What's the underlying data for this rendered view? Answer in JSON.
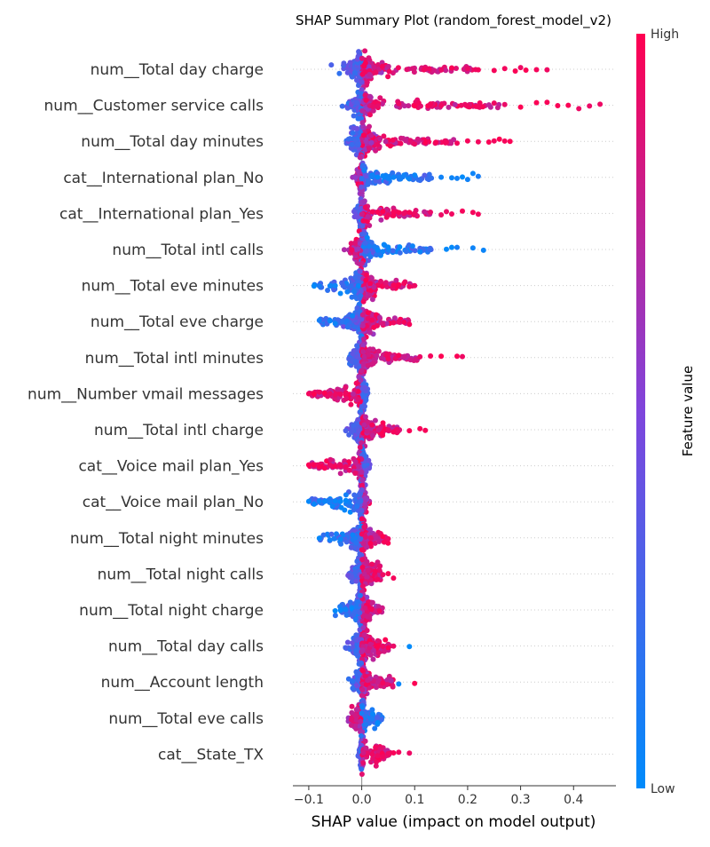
{
  "chart_data": {
    "type": "scatter",
    "subtype": "shap-beeswarm",
    "title": "SHAP Summary Plot (random_forest_model_v2)",
    "xlabel": "SHAP value (impact on model output)",
    "xlim": [
      -0.13,
      0.48
    ],
    "xticks": [
      -0.1,
      0.0,
      0.1,
      0.2,
      0.3,
      0.4
    ],
    "xtick_labels": [
      "−0.1",
      "0.0",
      "0.1",
      "0.2",
      "0.3",
      "0.4"
    ],
    "colorbar": {
      "label": "Feature value",
      "high_label": "High",
      "low_label": "Low",
      "low_color": "#008bfb",
      "mid_color": "#7f45dc",
      "high_color": "#ff0051"
    },
    "zero_line": true,
    "features": [
      {
        "name": "num__Total day charge",
        "min": -0.08,
        "max": 0.36,
        "low_side": "left",
        "core_width": 0.03,
        "spread_to": "right",
        "sparse_high": [
          0.12,
          0.15,
          0.17,
          0.2,
          0.22,
          0.25,
          0.27,
          0.29,
          0.3,
          0.31,
          0.33,
          0.35
        ]
      },
      {
        "name": "num__Customer service calls",
        "min": -0.04,
        "max": 0.45,
        "low_side": "left",
        "core_width": 0.02,
        "spread_to": "right",
        "sparse_high": [
          0.07,
          0.1,
          0.13,
          0.15,
          0.2,
          0.22,
          0.25,
          0.27,
          0.3,
          0.33,
          0.35,
          0.37,
          0.39,
          0.41,
          0.43,
          0.45
        ]
      },
      {
        "name": "num__Total day minutes",
        "min": -0.07,
        "max": 0.29,
        "low_side": "left",
        "core_width": 0.025,
        "spread_to": "right",
        "sparse_high": [
          0.1,
          0.12,
          0.14,
          0.16,
          0.18,
          0.2,
          0.22,
          0.24,
          0.25,
          0.26,
          0.27,
          0.28
        ]
      },
      {
        "name": "cat__International plan_No",
        "min": -0.02,
        "max": 0.22,
        "low_side": "right",
        "core_width": 0.01,
        "spread_to": "right",
        "sparse_low": [
          0.02,
          0.03,
          0.04,
          0.05,
          0.06,
          0.07,
          0.08,
          0.09,
          0.1,
          0.15,
          0.17,
          0.18,
          0.19,
          0.2,
          0.21,
          0.22
        ]
      },
      {
        "name": "cat__International plan_Yes",
        "min": -0.02,
        "max": 0.22,
        "low_side": "left",
        "core_width": 0.01,
        "spread_to": "right",
        "sparse_high": [
          0.02,
          0.03,
          0.04,
          0.05,
          0.06,
          0.07,
          0.08,
          0.09,
          0.15,
          0.16,
          0.17,
          0.19,
          0.21,
          0.22
        ]
      },
      {
        "name": "num__Total intl calls",
        "min": -0.06,
        "max": 0.23,
        "low_side": "right",
        "core_width": 0.02,
        "spread_to": "right",
        "sparse_low": [
          0.03,
          0.04,
          0.05,
          0.11,
          0.16,
          0.17,
          0.18,
          0.21,
          0.23
        ]
      },
      {
        "name": "num__Total eve minutes",
        "min": -0.09,
        "max": 0.1,
        "low_side": "left",
        "core_width": 0.03,
        "spread_to": "both",
        "sparse_high": [
          0.06,
          0.07,
          0.08,
          0.09,
          0.1
        ],
        "sparse_low": [
          -0.09,
          -0.06,
          -0.05
        ]
      },
      {
        "name": "num__Total eve charge",
        "min": -0.08,
        "max": 0.09,
        "low_side": "left",
        "core_width": 0.03,
        "spread_to": "both",
        "sparse_high": [
          0.06,
          0.07,
          0.08,
          0.09
        ],
        "sparse_low": [
          -0.08,
          -0.06,
          -0.05
        ]
      },
      {
        "name": "num__Total intl minutes",
        "min": -0.04,
        "max": 0.19,
        "low_side": "left",
        "core_width": 0.02,
        "spread_to": "right",
        "sparse_high": [
          0.05,
          0.07,
          0.11,
          0.13,
          0.15,
          0.18,
          0.19
        ]
      },
      {
        "name": "num__Number vmail messages",
        "min": -0.1,
        "max": 0.04,
        "low_side": "right",
        "core_width": 0.01,
        "spread_to": "left",
        "sparse_high": [
          -0.1,
          -0.09,
          -0.08,
          -0.07,
          -0.06,
          -0.05,
          -0.04,
          -0.03
        ]
      },
      {
        "name": "num__Total intl charge",
        "min": -0.04,
        "max": 0.12,
        "low_side": "left",
        "core_width": 0.02,
        "spread_to": "right",
        "sparse_high": [
          0.05,
          0.06,
          0.09,
          0.11,
          0.12
        ]
      },
      {
        "name": "cat__Voice mail plan_Yes",
        "min": -0.1,
        "max": 0.04,
        "low_side": "right",
        "core_width": 0.01,
        "spread_to": "left",
        "sparse_high": [
          -0.1,
          -0.09,
          -0.08,
          -0.07,
          -0.06,
          -0.05,
          -0.04,
          -0.03
        ]
      },
      {
        "name": "cat__Voice mail plan_No",
        "min": -0.1,
        "max": 0.04,
        "low_side": "left",
        "core_width": 0.01,
        "spread_to": "left",
        "sparse_low": [
          -0.1,
          -0.09,
          -0.08,
          -0.07,
          -0.06,
          -0.05,
          -0.04,
          -0.03
        ]
      },
      {
        "name": "num__Total night minutes",
        "min": -0.08,
        "max": 0.05,
        "low_side": "left",
        "core_width": 0.02,
        "spread_to": "both",
        "sparse_high": [
          0.04,
          0.05
        ],
        "sparse_low": [
          -0.08,
          -0.06,
          -0.04
        ]
      },
      {
        "name": "num__Total night calls",
        "min": -0.02,
        "max": 0.06,
        "low_side": "left",
        "core_width": 0.02,
        "spread_to": "right",
        "sparse_high": [
          0.04,
          0.05,
          0.06
        ]
      },
      {
        "name": "num__Total night charge",
        "min": -0.05,
        "max": 0.04,
        "low_side": "left",
        "core_width": 0.02,
        "spread_to": "both",
        "sparse_low": [
          -0.05,
          -0.04,
          -0.03
        ]
      },
      {
        "name": "num__Total day calls",
        "min": -0.02,
        "max": 0.09,
        "low_side": "left",
        "core_width": 0.02,
        "spread_to": "right",
        "sparse_high": [
          0.03,
          0.04,
          0.05,
          0.06
        ],
        "sparse_low": [
          0.09
        ]
      },
      {
        "name": "num__Account length",
        "min": -0.02,
        "max": 0.1,
        "low_side": "left",
        "core_width": 0.015,
        "spread_to": "right",
        "sparse_high": [
          0.04,
          0.1
        ],
        "sparse_low": [
          0.07
        ]
      },
      {
        "name": "num__Total eve calls",
        "min": -0.02,
        "max": 0.04,
        "low_side": "right",
        "core_width": 0.015,
        "spread_to": "both"
      },
      {
        "name": "cat__State_TX",
        "min": 0.0,
        "max": 0.09,
        "low_side": "left",
        "core_width": 0.004,
        "spread_to": "right",
        "sparse_high": [
          0.02,
          0.03,
          0.04,
          0.05,
          0.06,
          0.07,
          0.09
        ]
      }
    ]
  }
}
